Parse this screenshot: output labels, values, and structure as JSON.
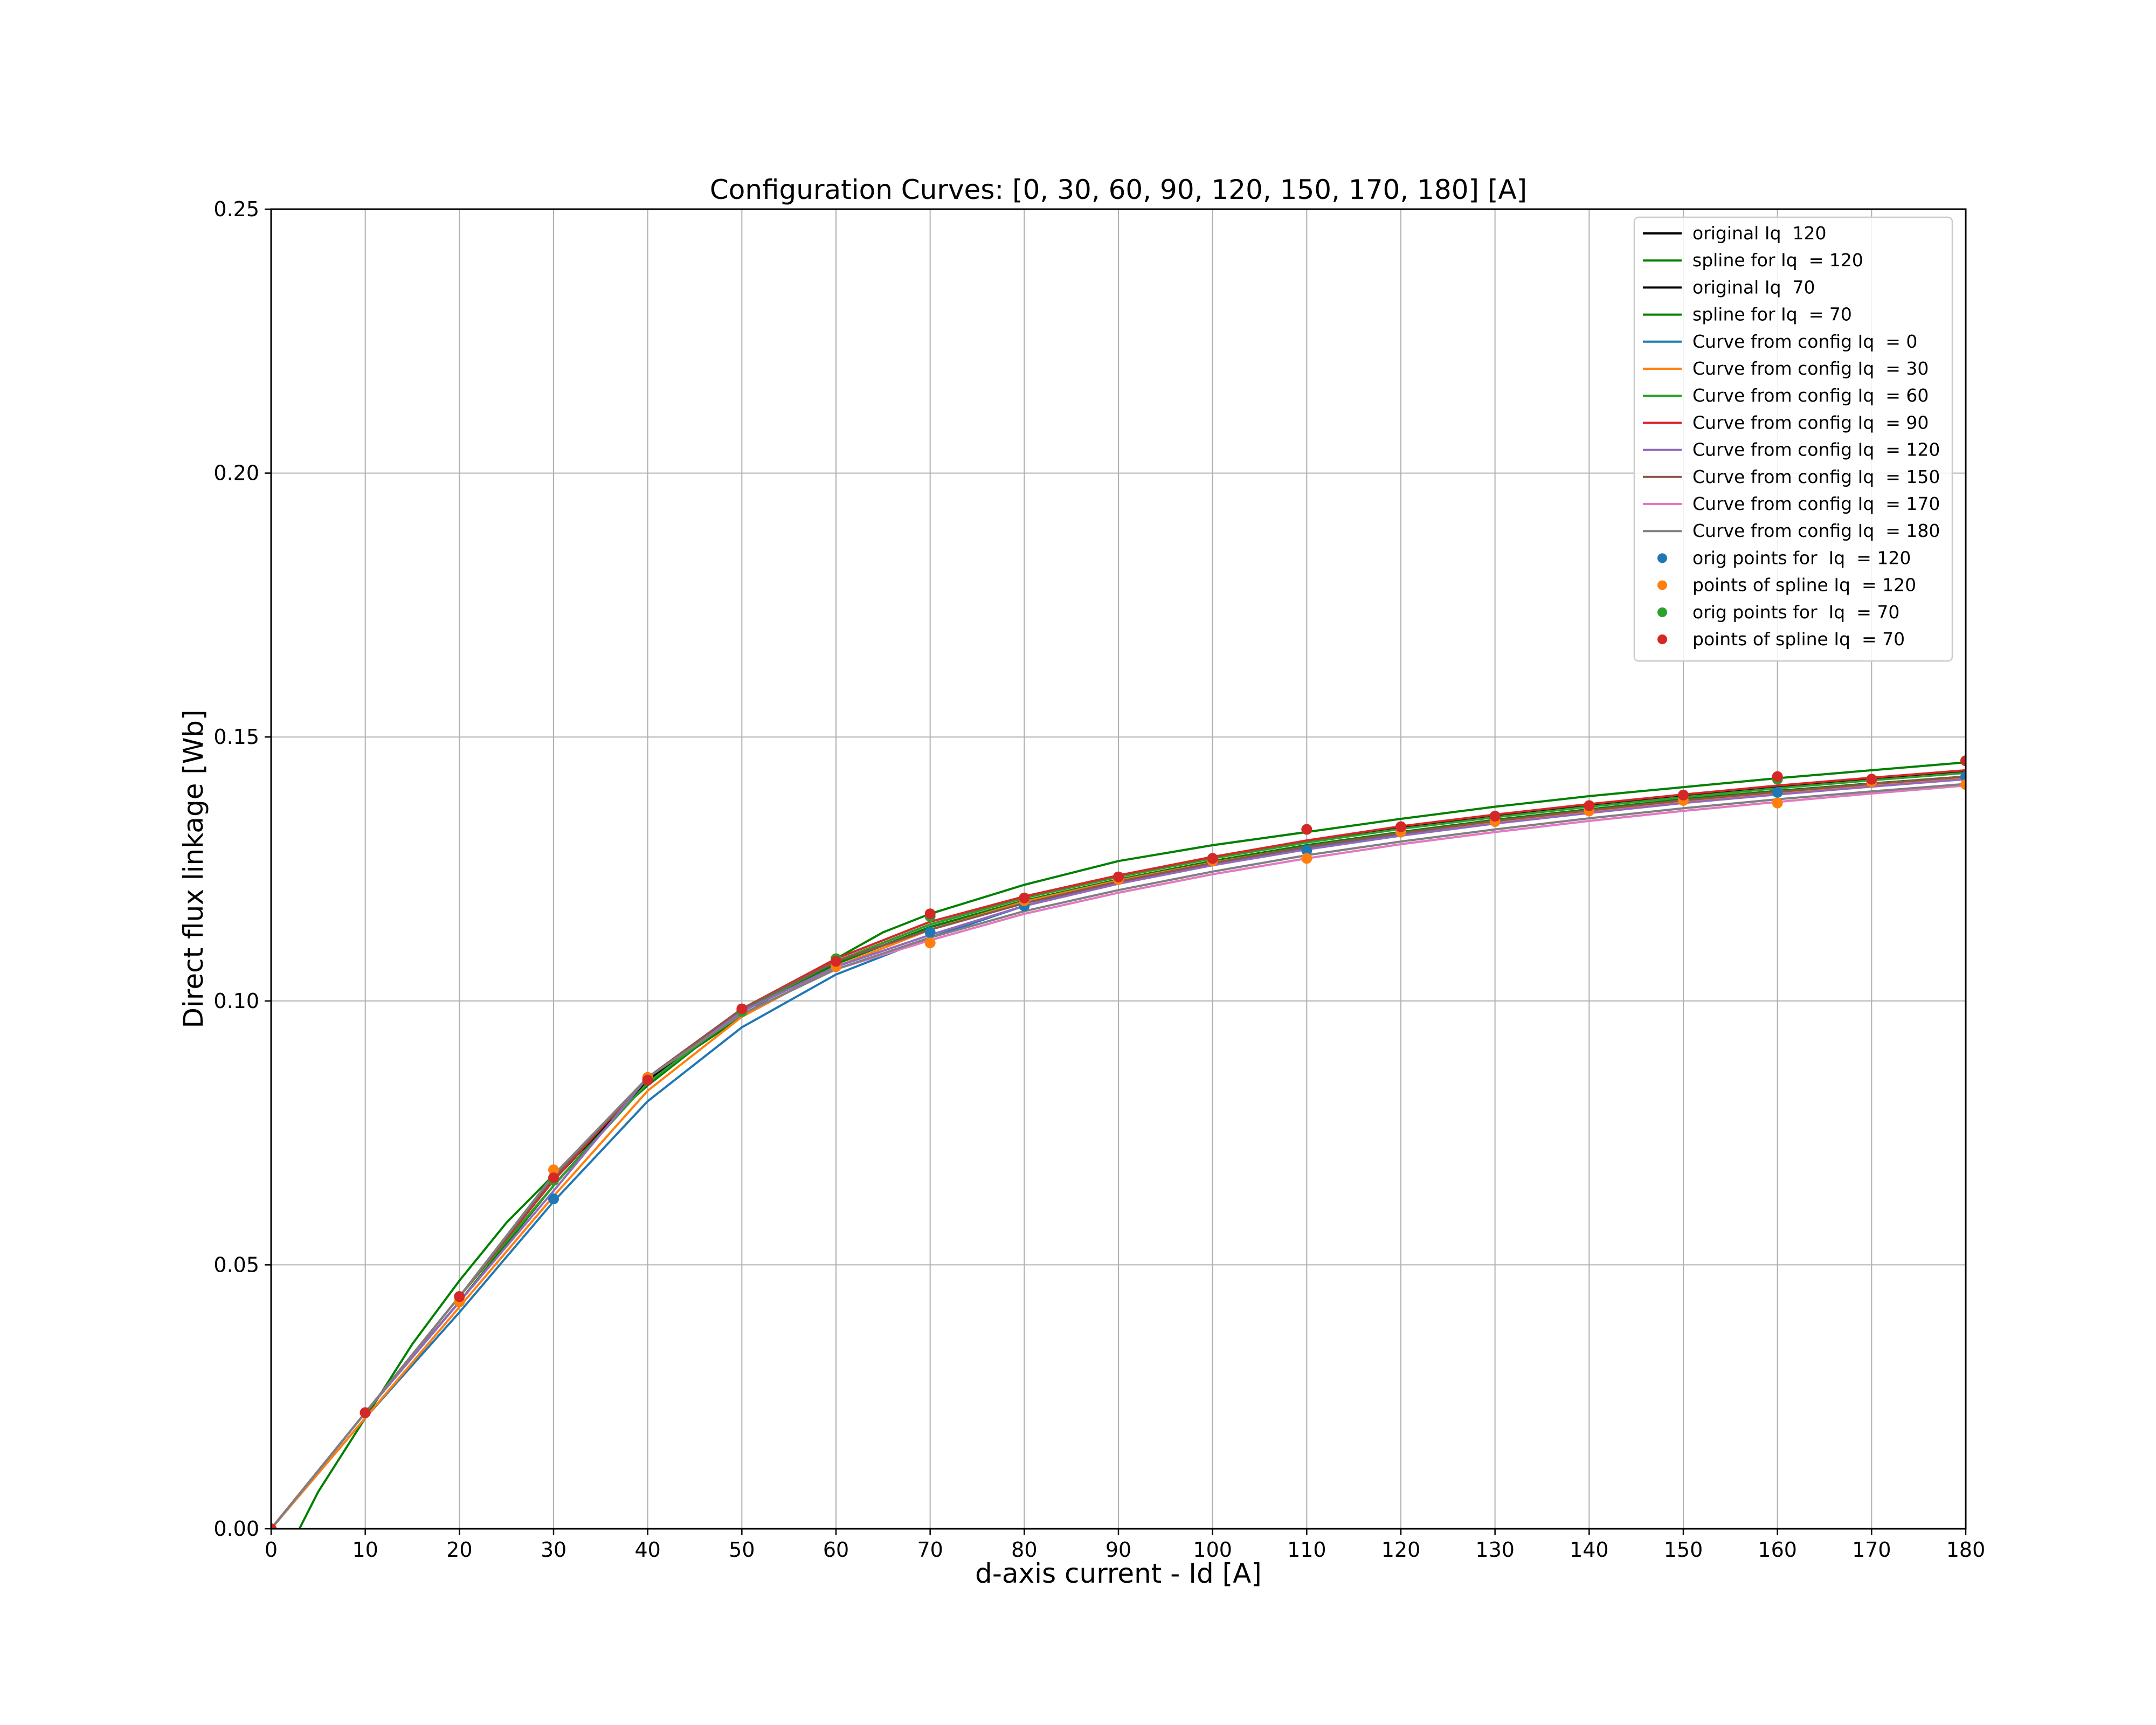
{
  "chart_data": {
    "type": "line",
    "title": "Configuration Curves: [0, 30, 60, 90, 120, 150, 170, 180] [A]",
    "xlabel": "d-axis current - Id [A]",
    "ylabel": "Direct flux linkage [Wb]",
    "xlim": [
      0,
      180
    ],
    "ylim": [
      0,
      0.25
    ],
    "xticks": [
      "0",
      "10",
      "20",
      "30",
      "40",
      "50",
      "60",
      "70",
      "80",
      "90",
      "100",
      "110",
      "120",
      "130",
      "140",
      "150",
      "160",
      "170",
      "180"
    ],
    "yticks": [
      "0.00",
      "0.05",
      "0.10",
      "0.15",
      "0.20",
      "0.25"
    ],
    "grid": true,
    "legend_position": "top-right",
    "series": [
      {
        "name": "original Iq  120",
        "kind": "line",
        "color": "#000000",
        "x": [
          0,
          10,
          20,
          30,
          40,
          50,
          60,
          70,
          80,
          90,
          100,
          110,
          120,
          130,
          140,
          150,
          160,
          170,
          180
        ],
        "y": [
          0,
          0.022,
          0.043,
          0.065,
          0.085,
          0.098,
          0.107,
          0.114,
          0.119,
          0.123,
          0.1265,
          0.1295,
          0.132,
          0.1343,
          0.1363,
          0.1382,
          0.1398,
          0.1412,
          0.1425
        ]
      },
      {
        "name": "spline for Iq  = 120",
        "kind": "line",
        "color": "#008000",
        "x": [
          0,
          10,
          20,
          30,
          40,
          50,
          60,
          70,
          80,
          90,
          100,
          110,
          120,
          130,
          140,
          150,
          160,
          170,
          180
        ],
        "y": [
          0,
          0.022,
          0.043,
          0.065,
          0.085,
          0.098,
          0.107,
          0.114,
          0.119,
          0.123,
          0.1265,
          0.1295,
          0.132,
          0.1343,
          0.1363,
          0.1382,
          0.1398,
          0.1412,
          0.1425
        ]
      },
      {
        "name": "original Iq  70",
        "kind": "line",
        "color": "#000000",
        "x": [
          0,
          10,
          20,
          30,
          40,
          50,
          60,
          70,
          80,
          90,
          100,
          110,
          120,
          130,
          140,
          150,
          160,
          170,
          180
        ],
        "y": [
          0,
          0.022,
          0.044,
          0.066,
          0.085,
          0.098,
          0.1075,
          0.1145,
          0.1195,
          0.1235,
          0.127,
          0.1302,
          0.1328,
          0.135,
          0.137,
          0.1388,
          0.1405,
          0.142,
          0.1435
        ]
      },
      {
        "name": "spline for Iq  = 70",
        "kind": "line",
        "color": "#008000",
        "x": [
          0,
          3,
          5,
          10,
          15,
          20,
          25,
          30,
          35,
          40,
          45,
          50,
          55,
          60,
          65,
          70,
          80,
          90,
          100,
          110,
          120,
          130,
          140,
          150,
          160,
          170,
          180
        ],
        "y": [
          -0.012,
          0,
          0.007,
          0.021,
          0.035,
          0.047,
          0.058,
          0.067,
          0.076,
          0.084,
          0.091,
          0.097,
          0.103,
          0.108,
          0.113,
          0.1165,
          0.122,
          0.1265,
          0.1295,
          0.132,
          0.1345,
          0.1368,
          0.1388,
          0.1405,
          0.1422,
          0.1437,
          0.1452
        ]
      },
      {
        "name": "Curve from config Iq  = 0",
        "kind": "line",
        "color": "#1f77b4",
        "x": [
          0,
          10,
          20,
          30,
          40,
          50,
          60,
          70,
          80,
          90,
          100,
          110,
          120,
          130,
          140,
          150,
          160,
          170,
          180
        ],
        "y": [
          0,
          0.021,
          0.041,
          0.062,
          0.081,
          0.095,
          0.105,
          0.112,
          0.118,
          0.1225,
          0.126,
          0.129,
          0.1315,
          0.1338,
          0.1358,
          0.1377,
          0.1393,
          0.1408,
          0.1422
        ]
      },
      {
        "name": "Curve from config Iq  = 30",
        "kind": "line",
        "color": "#ff7f0e",
        "x": [
          0,
          10,
          20,
          30,
          40,
          50,
          60,
          70,
          80,
          90,
          100,
          110,
          120,
          130,
          140,
          150,
          160,
          170,
          180
        ],
        "y": [
          0,
          0.021,
          0.042,
          0.063,
          0.083,
          0.097,
          0.1065,
          0.1135,
          0.1188,
          0.1228,
          0.1262,
          0.1292,
          0.1318,
          0.134,
          0.136,
          0.1378,
          0.1395,
          0.141,
          0.1424
        ]
      },
      {
        "name": "Curve from config Iq  = 60",
        "kind": "line",
        "color": "#2ca02c",
        "x": [
          0,
          10,
          20,
          30,
          40,
          50,
          60,
          70,
          80,
          90,
          100,
          110,
          120,
          130,
          140,
          150,
          160,
          170,
          180
        ],
        "y": [
          0,
          0.022,
          0.044,
          0.065,
          0.0845,
          0.098,
          0.1075,
          0.1145,
          0.1195,
          0.1235,
          0.127,
          0.13,
          0.1326,
          0.1348,
          0.1368,
          0.1386,
          0.1403,
          0.1418,
          0.1432
        ]
      },
      {
        "name": "Curve from config Iq  = 90",
        "kind": "line",
        "color": "#d62728",
        "x": [
          0,
          10,
          20,
          30,
          40,
          50,
          60,
          70,
          80,
          90,
          100,
          110,
          120,
          130,
          140,
          150,
          160,
          170,
          180
        ],
        "y": [
          0,
          0.022,
          0.044,
          0.066,
          0.0855,
          0.0985,
          0.108,
          0.115,
          0.1198,
          0.1238,
          0.1273,
          0.1304,
          0.1331,
          0.1353,
          0.1373,
          0.1391,
          0.1408,
          0.1423,
          0.1437
        ]
      },
      {
        "name": "Curve from config Iq  = 120",
        "kind": "line",
        "color": "#9467bd",
        "x": [
          0,
          10,
          20,
          30,
          40,
          50,
          60,
          70,
          80,
          90,
          100,
          110,
          120,
          130,
          140,
          150,
          160,
          170,
          180
        ],
        "y": [
          0,
          0.022,
          0.043,
          0.064,
          0.0855,
          0.098,
          0.1065,
          0.1125,
          0.118,
          0.1222,
          0.1257,
          0.1287,
          0.1313,
          0.1336,
          0.1356,
          0.1375,
          0.1391,
          0.1406,
          0.142
        ]
      },
      {
        "name": "Curve from config Iq  = 150",
        "kind": "line",
        "color": "#8c564b",
        "x": [
          0,
          10,
          20,
          30,
          40,
          50,
          60,
          70,
          80,
          90,
          100,
          110,
          120,
          130,
          140,
          150,
          160,
          170,
          180
        ],
        "y": [
          0,
          0.022,
          0.044,
          0.0665,
          0.0855,
          0.0985,
          0.1075,
          0.1135,
          0.1185,
          0.1226,
          0.1261,
          0.1292,
          0.1318,
          0.1341,
          0.1361,
          0.138,
          0.1396,
          0.1411,
          0.1425
        ]
      },
      {
        "name": "Curve from config Iq  = 170",
        "kind": "line",
        "color": "#e377c2",
        "x": [
          0,
          10,
          20,
          30,
          40,
          50,
          60,
          70,
          80,
          90,
          100,
          110,
          120,
          130,
          140,
          150,
          160,
          170,
          180
        ],
        "y": [
          0,
          0.022,
          0.044,
          0.067,
          0.0855,
          0.0975,
          0.106,
          0.1115,
          0.1165,
          0.1205,
          0.124,
          0.127,
          0.1297,
          0.132,
          0.1341,
          0.136,
          0.1377,
          0.1393,
          0.1408
        ]
      },
      {
        "name": "Curve from config Iq  = 180",
        "kind": "line",
        "color": "#7f7f7f",
        "x": [
          0,
          10,
          20,
          30,
          40,
          50,
          60,
          70,
          80,
          90,
          100,
          110,
          120,
          130,
          140,
          150,
          160,
          170,
          180
        ],
        "y": [
          0,
          0.022,
          0.044,
          0.067,
          0.0855,
          0.0975,
          0.106,
          0.112,
          0.117,
          0.121,
          0.1245,
          0.1276,
          0.1302,
          0.1325,
          0.1346,
          0.1365,
          0.1382,
          0.1397,
          0.1411
        ]
      },
      {
        "name": "orig points for  Iq  = 120",
        "kind": "scatter",
        "color": "#1f77b4",
        "x": [
          0,
          10,
          20,
          30,
          40,
          50,
          60,
          70,
          80,
          90,
          100,
          110,
          120,
          130,
          140,
          150,
          160,
          170,
          180
        ],
        "y": [
          0,
          0.022,
          0.043,
          0.0625,
          0.0855,
          0.098,
          0.1065,
          0.113,
          0.118,
          0.123,
          0.1265,
          0.1285,
          0.132,
          0.134,
          0.136,
          0.138,
          0.1395,
          0.1415,
          0.1425
        ]
      },
      {
        "name": "points of spline Iq  = 120",
        "kind": "scatter",
        "color": "#ff7f0e",
        "x": [
          0,
          10,
          20,
          30,
          40,
          50,
          60,
          70,
          80,
          90,
          100,
          110,
          120,
          130,
          140,
          150,
          160,
          170,
          180
        ],
        "y": [
          0,
          0.022,
          0.043,
          0.068,
          0.0855,
          0.098,
          0.1065,
          0.111,
          0.119,
          0.123,
          0.1265,
          0.127,
          0.132,
          0.134,
          0.136,
          0.138,
          0.1375,
          0.1415,
          0.141
        ]
      },
      {
        "name": "orig points for  Iq  = 70",
        "kind": "scatter",
        "color": "#2ca02c",
        "x": [
          0,
          10,
          20,
          30,
          40,
          50,
          60,
          70,
          80,
          90,
          100,
          110,
          120,
          130,
          140,
          150,
          160,
          170,
          180
        ],
        "y": [
          0,
          0.022,
          0.044,
          0.066,
          0.085,
          0.098,
          0.108,
          0.116,
          0.1195,
          0.1235,
          0.127,
          0.1325,
          0.133,
          0.135,
          0.137,
          0.139,
          0.142,
          0.142,
          0.1455
        ]
      },
      {
        "name": "points of spline Iq  = 70",
        "kind": "scatter",
        "color": "#d62728",
        "x": [
          0,
          10,
          20,
          30,
          40,
          50,
          60,
          70,
          80,
          90,
          100,
          110,
          120,
          130,
          140,
          150,
          160,
          170,
          180
        ],
        "y": [
          0,
          0.022,
          0.044,
          0.0665,
          0.085,
          0.0985,
          0.1075,
          0.1165,
          0.1195,
          0.1235,
          0.127,
          0.1325,
          0.133,
          0.135,
          0.137,
          0.139,
          0.1425,
          0.142,
          0.1455
        ]
      }
    ]
  }
}
